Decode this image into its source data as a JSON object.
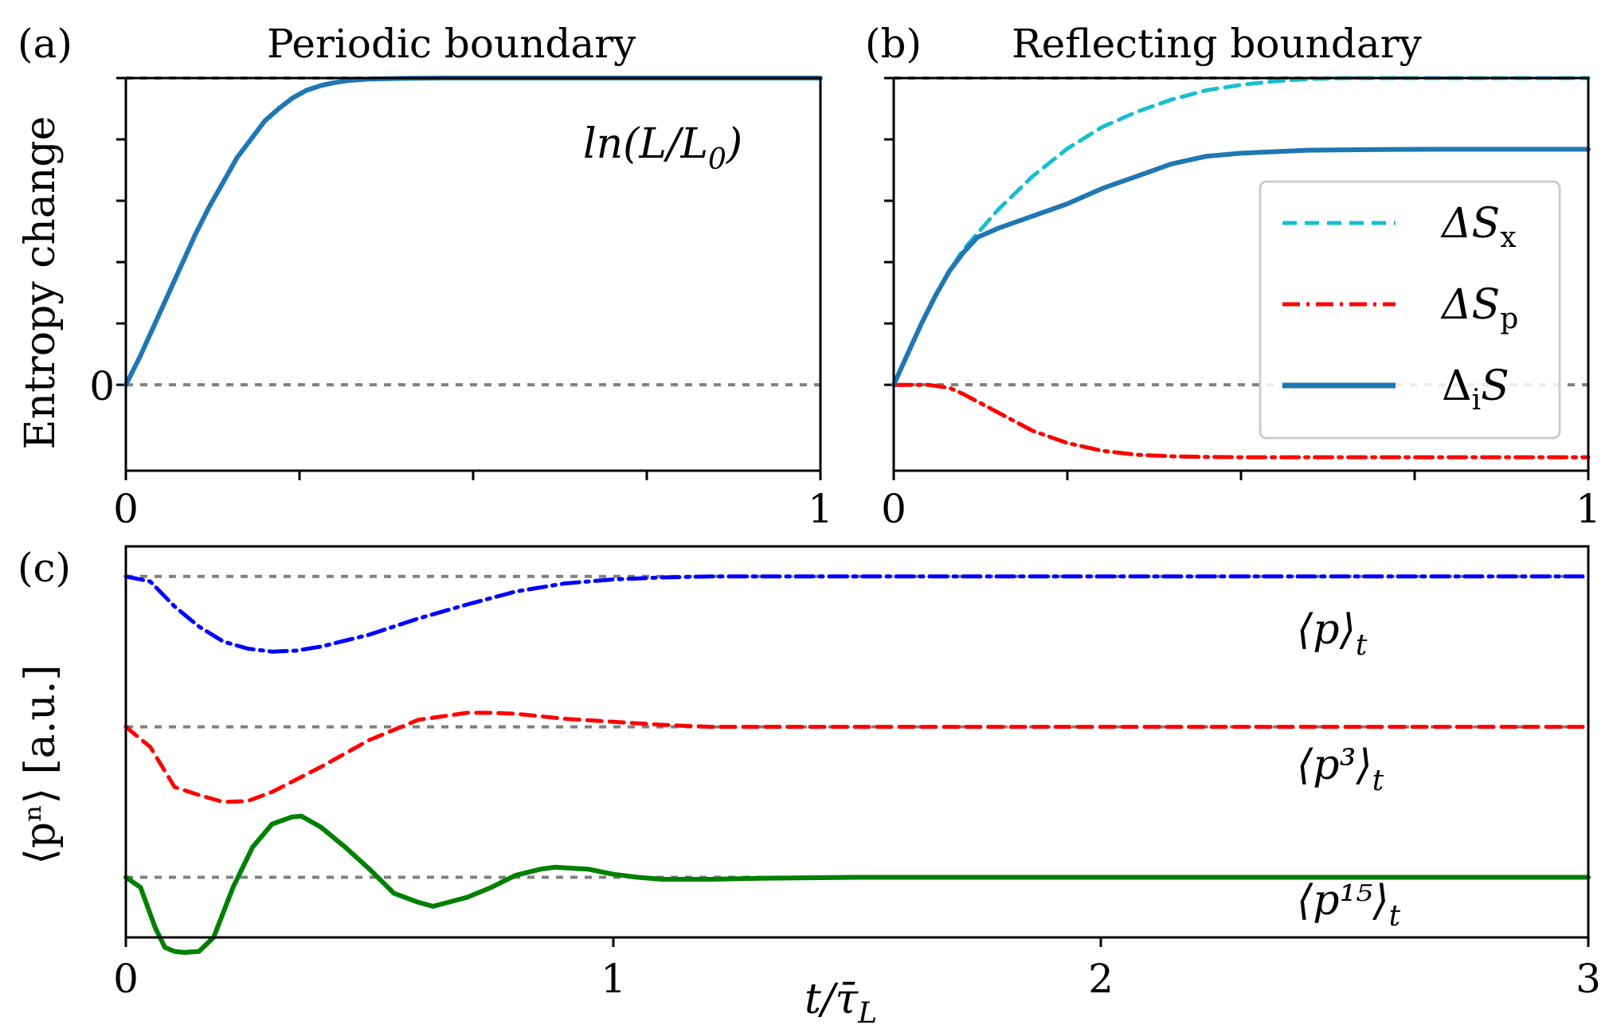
{
  "chart_data": [
    {
      "type": "line",
      "panel_label": "(a)",
      "title": "Periodic boundary",
      "ylabel": "Entropy change",
      "xlabel": "",
      "xlim": [
        0,
        1
      ],
      "ylim": [
        -0.28,
        1.0
      ],
      "x_ticks": [
        0,
        1
      ],
      "y_tick_labels": [
        "0"
      ],
      "reference_lines": [
        0,
        1
      ],
      "annotation": "ln(L/L₀)",
      "series": [
        {
          "name": "Entropy change",
          "color": "#1f77b4",
          "style": "solid",
          "x": [
            0,
            0.02,
            0.04,
            0.06,
            0.08,
            0.1,
            0.12,
            0.14,
            0.16,
            0.18,
            0.2,
            0.22,
            0.24,
            0.26,
            0.28,
            0.3,
            0.32,
            0.35,
            0.4,
            0.45,
            0.5,
            0.6,
            0.7,
            0.8,
            0.9,
            1.0
          ],
          "y": [
            0,
            0.09,
            0.19,
            0.29,
            0.39,
            0.49,
            0.58,
            0.66,
            0.74,
            0.8,
            0.86,
            0.9,
            0.935,
            0.96,
            0.975,
            0.985,
            0.992,
            0.997,
            0.999,
            1.0,
            1.0,
            1.0,
            1.0,
            1.0,
            1.0,
            1.0
          ]
        }
      ]
    },
    {
      "type": "line",
      "panel_label": "(b)",
      "title": "Reflecting boundary",
      "xlabel": "",
      "xlim": [
        0,
        1
      ],
      "ylim": [
        -0.28,
        1.0
      ],
      "x_ticks": [
        0,
        1
      ],
      "reference_lines": [
        0,
        1
      ],
      "legend_position": "right",
      "legend": [
        "ΔSₓ",
        "ΔSₚ",
        "ΔᵢS"
      ],
      "series": [
        {
          "name": "ΔSx",
          "color": "#17becf",
          "style": "dashed",
          "x": [
            0,
            0.02,
            0.04,
            0.06,
            0.08,
            0.1,
            0.15,
            0.2,
            0.25,
            0.3,
            0.35,
            0.4,
            0.45,
            0.5,
            0.55,
            0.6,
            0.65,
            0.7,
            0.8,
            0.9,
            1.0
          ],
          "y": [
            0,
            0.1,
            0.2,
            0.29,
            0.37,
            0.44,
            0.57,
            0.68,
            0.77,
            0.84,
            0.89,
            0.93,
            0.96,
            0.978,
            0.99,
            0.997,
            1.0,
            1.0,
            1.0,
            1.0,
            1.0
          ]
        },
        {
          "name": "ΔSp",
          "color": "#ff0000",
          "style": "dashdot",
          "x": [
            0,
            0.05,
            0.08,
            0.1,
            0.15,
            0.2,
            0.25,
            0.3,
            0.35,
            0.4,
            0.45,
            0.5,
            0.6,
            0.7,
            0.8,
            0.9,
            1.0
          ],
          "y": [
            0,
            0,
            -0.01,
            -0.03,
            -0.09,
            -0.15,
            -0.19,
            -0.215,
            -0.228,
            -0.233,
            -0.235,
            -0.236,
            -0.236,
            -0.236,
            -0.236,
            -0.236,
            -0.236
          ],
          "label": "ΔSₚ"
        },
        {
          "name": "ΔiS",
          "color": "#1f77b4",
          "style": "solid",
          "x": [
            0,
            0.02,
            0.04,
            0.06,
            0.08,
            0.1,
            0.12,
            0.15,
            0.2,
            0.25,
            0.3,
            0.35,
            0.4,
            0.45,
            0.5,
            0.55,
            0.6,
            0.7,
            0.8,
            0.9,
            1.0
          ],
          "y": [
            0,
            0.1,
            0.2,
            0.29,
            0.37,
            0.43,
            0.48,
            0.51,
            0.55,
            0.59,
            0.64,
            0.68,
            0.72,
            0.745,
            0.755,
            0.76,
            0.765,
            0.767,
            0.768,
            0.768,
            0.768
          ]
        }
      ]
    },
    {
      "type": "line",
      "panel_label": "(c)",
      "xlabel": "t/τ̄_L",
      "ylabel": "⟨pⁿ⟩ [a.u.]",
      "xlim": [
        0,
        3
      ],
      "ylim": [
        -3.6,
        0.3
      ],
      "x_ticks": [
        0,
        1,
        2,
        3
      ],
      "x_tick_labels": [
        "0",
        "1",
        "2",
        "3"
      ],
      "reference_lines": [
        0,
        -1.5,
        -3.0
      ],
      "series": [
        {
          "name": "⟨p⟩t",
          "label": "⟨p⟩",
          "color": "#0000ff",
          "style": "dashdot",
          "x": [
            0,
            0.05,
            0.1,
            0.15,
            0.2,
            0.25,
            0.3,
            0.35,
            0.4,
            0.5,
            0.6,
            0.7,
            0.8,
            0.9,
            1.0,
            1.1,
            1.2,
            1.5,
            2.0,
            2.5,
            3.0
          ],
          "y": [
            0,
            -0.05,
            -0.3,
            -0.5,
            -0.65,
            -0.72,
            -0.75,
            -0.74,
            -0.7,
            -0.58,
            -0.42,
            -0.28,
            -0.15,
            -0.07,
            -0.03,
            -0.01,
            0,
            0,
            0,
            0,
            0
          ]
        },
        {
          "name": "⟨p³⟩t",
          "label": "⟨p³⟩",
          "color": "#ff0000",
          "style": "dashed",
          "x": [
            0,
            0.05,
            0.1,
            0.15,
            0.2,
            0.25,
            0.3,
            0.4,
            0.5,
            0.6,
            0.7,
            0.75,
            0.8,
            0.9,
            1.0,
            1.1,
            1.2,
            1.3,
            1.5,
            2.0,
            2.5,
            3.0
          ],
          "y": [
            -1.5,
            -1.7,
            -2.1,
            -2.18,
            -2.25,
            -2.24,
            -2.15,
            -1.9,
            -1.63,
            -1.43,
            -1.36,
            -1.36,
            -1.37,
            -1.42,
            -1.45,
            -1.48,
            -1.5,
            -1.5,
            -1.5,
            -1.5,
            -1.5,
            -1.5
          ]
        },
        {
          "name": "⟨p¹⁵⟩t",
          "label": "⟨p¹⁵⟩",
          "color": "#008000",
          "style": "solid",
          "x": [
            0,
            0.03,
            0.06,
            0.08,
            0.1,
            0.12,
            0.15,
            0.18,
            0.22,
            0.26,
            0.3,
            0.34,
            0.36,
            0.4,
            0.45,
            0.5,
            0.55,
            0.6,
            0.63,
            0.7,
            0.75,
            0.8,
            0.85,
            0.88,
            0.95,
            1.0,
            1.05,
            1.1,
            1.15,
            1.2,
            1.3,
            1.5,
            2.0,
            2.5,
            3.0
          ],
          "y": [
            -3.0,
            -3.1,
            -3.5,
            -3.7,
            -3.74,
            -3.75,
            -3.74,
            -3.6,
            -3.1,
            -2.7,
            -2.47,
            -2.4,
            -2.39,
            -2.5,
            -2.7,
            -2.92,
            -3.16,
            -3.25,
            -3.29,
            -3.2,
            -3.1,
            -2.98,
            -2.92,
            -2.9,
            -2.92,
            -2.97,
            -3.0,
            -3.02,
            -3.02,
            -3.02,
            -3.01,
            -3.0,
            -3.0,
            -3.0,
            -3.0
          ]
        }
      ]
    }
  ],
  "labels": {
    "a_panel": "(a)",
    "a_title": "Periodic boundary",
    "b_panel": "(b)",
    "b_title": "Reflecting boundary",
    "c_panel": "(c)",
    "entropy_ylabel": "Entropy change",
    "moments_ylabel": "⟨pⁿ⟩ [a.u.]",
    "xlabel": "t/τ̄",
    "xlabel_sub": "L",
    "ln_ann": "ln(L/L",
    "ln_ann_sub": "0",
    "ln_ann_close": ")",
    "legend_sx": "ΔS",
    "legend_sx_sub": "x",
    "legend_sp": "ΔS",
    "legend_sp_sub": "p",
    "legend_is": "Δ",
    "legend_is_sub": "i",
    "legend_is_tail": "S",
    "p1_main": "⟨p⟩",
    "p1_sub": "t",
    "p3_main": "⟨p³⟩",
    "p3_sub": "t",
    "p15_main": "⟨p¹⁵⟩",
    "p15_sub": "t",
    "tick_0": "0",
    "tick_1": "1",
    "tick_2": "2",
    "tick_3": "3"
  }
}
